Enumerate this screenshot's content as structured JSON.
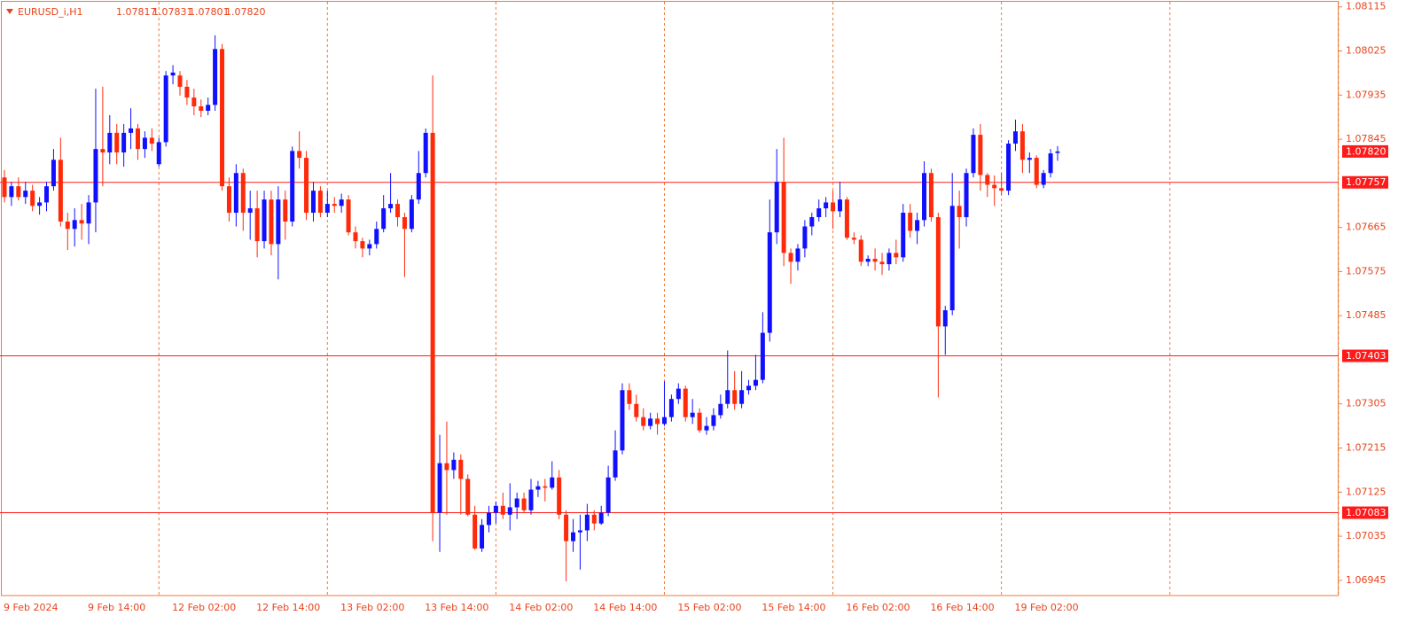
{
  "chart_data": {
    "type": "candlestick",
    "symbol": "EURUSD_i,H1",
    "up_color": "#1010ff",
    "down_color": "#ff2a0a",
    "level_color": "#ff1a1a",
    "grid": false,
    "ylim": [
      1.06914,
      1.08129
    ],
    "yticks": [
      1.08115,
      1.08025,
      1.07935,
      1.07845,
      1.07665,
      1.07575,
      1.07485,
      1.07305,
      1.07215,
      1.07125,
      1.07035,
      1.06945
    ],
    "levels": [
      1.07757,
      1.07403,
      1.07083
    ],
    "current_price": {
      "value": 1.0782,
      "label": "1.07820"
    },
    "categories": [
      "9 Feb 2024",
      null,
      null,
      null,
      null,
      null,
      null,
      null,
      null,
      null,
      null,
      null,
      "9 Feb 14:00",
      null,
      null,
      null,
      null,
      null,
      null,
      null,
      null,
      null,
      null,
      null,
      "12 Feb 02:00",
      null,
      null,
      null,
      null,
      null,
      null,
      null,
      null,
      null,
      null,
      null,
      "12 Feb 14:00",
      null,
      null,
      null,
      null,
      null,
      null,
      null,
      null,
      null,
      null,
      null,
      "13 Feb 02:00",
      null,
      null,
      null,
      null,
      null,
      null,
      null,
      null,
      null,
      null,
      null,
      "13 Feb 14:00",
      null,
      null,
      null,
      null,
      null,
      null,
      null,
      null,
      null,
      null,
      null,
      "14 Feb 02:00",
      null,
      null,
      null,
      null,
      null,
      null,
      null,
      null,
      null,
      null,
      null,
      "14 Feb 14:00",
      null,
      null,
      null,
      null,
      null,
      null,
      null,
      null,
      null,
      null,
      null,
      "15 Feb 02:00",
      null,
      null,
      null,
      null,
      null,
      null,
      null,
      null,
      null,
      null,
      null,
      "15 Feb 14:00",
      null,
      null,
      null,
      null,
      null,
      null,
      null,
      null,
      null,
      null,
      null,
      "16 Feb 02:00",
      null,
      null,
      null,
      null,
      null,
      null,
      null,
      null,
      null,
      null,
      null,
      "16 Feb 14:00",
      null,
      null,
      null,
      null,
      null,
      null,
      null,
      null,
      null,
      null,
      null,
      "19 Feb 02:00",
      null,
      null,
      null,
      null,
      null,
      null
    ],
    "open": [
      1.07767,
      1.07727,
      1.07749,
      1.07727,
      1.0774,
      1.07709,
      1.07716,
      1.07749,
      1.07803,
      1.07677,
      1.07662,
      1.0768,
      1.07673,
      1.07716,
      1.07825,
      1.07818,
      1.07858,
      1.07818,
      1.07858,
      1.07867,
      1.07825,
      1.07848,
      1.07794,
      1.07839,
      1.07975,
      1.07975,
      1.07952,
      1.0793,
      1.07912,
      1.07903,
      1.07915,
      1.08029,
      1.07749,
      1.07695,
      1.07776,
      1.07695,
      1.07704,
      1.07637,
      1.07722,
      1.07631,
      1.07722,
      1.07677,
      1.07821,
      1.07807,
      1.07695,
      1.0774,
      1.07695,
      1.07713,
      1.07709,
      1.07722,
      1.07655,
      1.07637,
      1.07622,
      1.07631,
      1.07662,
      1.07704,
      1.07713,
      1.07686,
      1.07662,
      1.07722,
      1.07776,
      1.07858,
      1.07083,
      1.07184,
      1.0717,
      1.07191,
      1.07152,
      1.07079,
      1.0701,
      1.07058,
      1.07083,
      1.07097,
      1.07079,
      1.07094,
      1.07112,
      1.07088,
      1.0713,
      1.07137,
      1.07134,
      1.07155,
      1.07079,
      1.07025,
      1.07043,
      1.07047,
      1.07079,
      1.07061,
      1.07083,
      1.07155,
      1.0721,
      1.07333,
      1.07305,
      1.07278,
      1.0726,
      1.07275,
      1.07264,
      1.07278,
      1.07315,
      1.07336,
      1.07278,
      1.07287,
      1.07251,
      1.0726,
      1.07282,
      1.07305,
      1.07333,
      1.07305,
      1.07333,
      1.07342,
      1.07354,
      1.0745,
      1.07655,
      1.07758,
      1.07613,
      1.07595,
      1.07622,
      1.07667,
      1.07686,
      1.07704,
      1.07716,
      1.07698,
      1.07722,
      1.07644,
      1.0764,
      1.07595,
      1.07601,
      1.07595,
      1.0759,
      1.07613,
      1.07604,
      1.07695,
      1.07658,
      1.0768,
      1.07776,
      1.07686,
      1.07463,
      1.07496,
      1.07709,
      1.07686,
      1.07776,
      1.07854,
      1.07772,
      1.07752,
      1.07745,
      1.0774,
      1.07836,
      1.07861,
      1.07803,
      1.07807,
      1.07752,
      1.07776,
      1.07817
    ],
    "high": [
      1.07782,
      1.07758,
      1.07767,
      1.07758,
      1.07752,
      1.07727,
      1.07758,
      1.07825,
      1.07848,
      1.07695,
      1.07704,
      1.07713,
      1.07731,
      1.07948,
      1.07952,
      1.07894,
      1.07876,
      1.07876,
      1.07908,
      1.07876,
      1.07861,
      1.07867,
      1.07848,
      1.07984,
      1.07996,
      1.07984,
      1.07966,
      1.07948,
      1.07926,
      1.0793,
      1.08057,
      1.08039,
      1.07767,
      1.07794,
      1.07785,
      1.0774,
      1.0774,
      1.0774,
      1.0774,
      1.07749,
      1.0774,
      1.0783,
      1.07861,
      1.07821,
      1.07758,
      1.07749,
      1.0774,
      1.07727,
      1.07734,
      1.07731,
      1.07667,
      1.07644,
      1.0764,
      1.07677,
      1.07731,
      1.07776,
      1.07722,
      1.07695,
      1.07731,
      1.07821,
      1.07867,
      1.07975,
      1.07242,
      1.07269,
      1.07206,
      1.07202,
      1.07161,
      1.07097,
      1.0707,
      1.07097,
      1.07106,
      1.07124,
      1.07143,
      1.07124,
      1.07124,
      1.07152,
      1.07148,
      1.07152,
      1.07188,
      1.0717,
      1.07088,
      1.0707,
      1.07079,
      1.07101,
      1.07088,
      1.07097,
      1.07179,
      1.07251,
      1.07347,
      1.07347,
      1.07324,
      1.07296,
      1.07287,
      1.07287,
      1.07351,
      1.07324,
      1.07347,
      1.07342,
      1.07315,
      1.07296,
      1.07278,
      1.07296,
      1.07324,
      1.07414,
      1.07372,
      1.07372,
      1.07354,
      1.07405,
      1.07492,
      1.07722,
      1.07825,
      1.07848,
      1.07622,
      1.07631,
      1.0768,
      1.07695,
      1.07722,
      1.07727,
      1.0774,
      1.07758,
      1.07727,
      1.07655,
      1.07649,
      1.07608,
      1.07622,
      1.07613,
      1.07622,
      1.0764,
      1.07713,
      1.07713,
      1.07695,
      1.078,
      1.07785,
      1.07695,
      1.07505,
      1.07776,
      1.0774,
      1.07785,
      1.07867,
      1.07876,
      1.07776,
      1.07771,
      1.07776,
      1.07843,
      1.07885,
      1.07876,
      1.07818,
      1.07812,
      1.07782,
      1.07825,
      1.07831
    ],
    "low": [
      1.07716,
      1.07709,
      1.0772,
      1.07713,
      1.07698,
      1.07691,
      1.07698,
      1.0774,
      1.07667,
      1.07619,
      1.07626,
      1.0764,
      1.07631,
      1.07655,
      1.07749,
      1.07794,
      1.07794,
      1.07789,
      1.07825,
      1.07803,
      1.07807,
      1.07821,
      1.07789,
      1.0783,
      1.07957,
      1.07934,
      1.07915,
      1.07894,
      1.0789,
      1.07894,
      1.07903,
      1.0774,
      1.07677,
      1.07667,
      1.07658,
      1.0764,
      1.07604,
      1.07622,
      1.07608,
      1.07559,
      1.0764,
      1.07667,
      1.07785,
      1.0768,
      1.07677,
      1.07686,
      1.07686,
      1.07695,
      1.07695,
      1.07649,
      1.07622,
      1.07604,
      1.07608,
      1.07622,
      1.07655,
      1.07695,
      1.07667,
      1.07564,
      1.07655,
      1.07713,
      1.07767,
      1.07025,
      1.07003,
      1.07079,
      1.07152,
      1.07079,
      1.07076,
      1.07007,
      1.07003,
      1.07043,
      1.07061,
      1.0707,
      1.07047,
      1.0707,
      1.07083,
      1.07079,
      1.07115,
      1.07106,
      1.0713,
      1.0707,
      1.06943,
      1.07003,
      1.06967,
      1.07025,
      1.07047,
      1.07058,
      1.07076,
      1.07148,
      1.07202,
      1.07293,
      1.07269,
      1.07251,
      1.07253,
      1.07242,
      1.0726,
      1.07269,
      1.07305,
      1.07269,
      1.07264,
      1.07246,
      1.07242,
      1.07251,
      1.07275,
      1.07296,
      1.07293,
      1.07296,
      1.07324,
      1.07333,
      1.07347,
      1.07432,
      1.07631,
      1.07586,
      1.0755,
      1.07577,
      1.07604,
      1.07649,
      1.07677,
      1.07686,
      1.07662,
      1.07686,
      1.0764,
      1.07631,
      1.07586,
      1.07586,
      1.07577,
      1.07568,
      1.07577,
      1.0759,
      1.07595,
      1.07644,
      1.07631,
      1.07667,
      1.07677,
      1.07318,
      1.07405,
      1.07486,
      1.07622,
      1.07667,
      1.07767,
      1.0774,
      1.07727,
      1.07709,
      1.07731,
      1.07731,
      1.07821,
      1.07776,
      1.07776,
      1.07745,
      1.07745,
      1.07767,
      1.07801
    ],
    "close": [
      1.07727,
      1.07749,
      1.07727,
      1.0774,
      1.07709,
      1.07716,
      1.07749,
      1.07803,
      1.07677,
      1.07662,
      1.0768,
      1.07673,
      1.07716,
      1.07825,
      1.07818,
      1.07858,
      1.07818,
      1.07858,
      1.07867,
      1.07825,
      1.07848,
      1.07836,
      1.07839,
      1.07975,
      1.07981,
      1.07952,
      1.0793,
      1.07912,
      1.07903,
      1.07915,
      1.08029,
      1.07749,
      1.07695,
      1.07776,
      1.07695,
      1.07704,
      1.07637,
      1.07722,
      1.07631,
      1.07722,
      1.07677,
      1.07821,
      1.07807,
      1.07695,
      1.0774,
      1.07695,
      1.07713,
      1.07709,
      1.07722,
      1.07655,
      1.07637,
      1.07622,
      1.07631,
      1.07662,
      1.07704,
      1.07713,
      1.07686,
      1.07662,
      1.07722,
      1.07776,
      1.07858,
      1.07083,
      1.07184,
      1.0717,
      1.07191,
      1.07152,
      1.07079,
      1.0701,
      1.07058,
      1.07083,
      1.07097,
      1.07079,
      1.07094,
      1.07112,
      1.07088,
      1.0713,
      1.07137,
      1.07134,
      1.07155,
      1.07079,
      1.07025,
      1.07043,
      1.07047,
      1.07079,
      1.07061,
      1.07083,
      1.07155,
      1.0721,
      1.07333,
      1.07305,
      1.07278,
      1.0726,
      1.07275,
      1.07264,
      1.07278,
      1.07315,
      1.07336,
      1.07278,
      1.07287,
      1.07251,
      1.0726,
      1.07282,
      1.07305,
      1.07333,
      1.07305,
      1.07333,
      1.07342,
      1.07354,
      1.0745,
      1.07655,
      1.07758,
      1.07613,
      1.07595,
      1.07622,
      1.07667,
      1.07686,
      1.07704,
      1.07716,
      1.07698,
      1.07722,
      1.07644,
      1.0764,
      1.07595,
      1.07601,
      1.07595,
      1.0759,
      1.07613,
      1.07604,
      1.07695,
      1.07658,
      1.0768,
      1.07776,
      1.07686,
      1.07463,
      1.07496,
      1.07709,
      1.07686,
      1.07776,
      1.07854,
      1.07772,
      1.07752,
      1.07745,
      1.0774,
      1.07836,
      1.07861,
      1.07803,
      1.07807,
      1.07752,
      1.07776,
      1.07816,
      1.0782
    ]
  }
}
